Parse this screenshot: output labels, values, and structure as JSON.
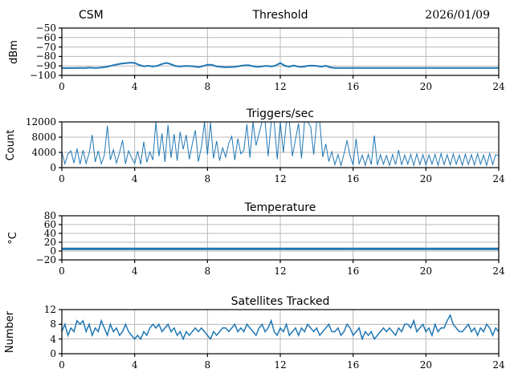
{
  "header": {
    "left_label": "CSM",
    "date": "2026/01/09"
  },
  "colors": {
    "line": "#1f77b4",
    "grid": "#b8b8b8",
    "spine": "#000000",
    "background": "#ffffff"
  },
  "chart_data": [
    {
      "type": "line",
      "title": "Threshold",
      "ylabel": "dBm",
      "xlim": [
        0,
        24
      ],
      "ylim": [
        -100,
        -50
      ],
      "yticks": [
        -100,
        -90,
        -80,
        -70,
        -60,
        -50
      ],
      "xticks": [
        0,
        4,
        8,
        12,
        16,
        20,
        24
      ],
      "grid": true,
      "line_width": 2,
      "x_start": 0,
      "x_end": 24,
      "values": [
        -92.2,
        -92.4,
        -92.1,
        -92.3,
        -92.0,
        -92.3,
        -91.8,
        -92.2,
        -92.0,
        -91.5,
        -90.8,
        -89.6,
        -88.6,
        -87.6,
        -87.0,
        -86.5,
        -86.9,
        -89.0,
        -90.3,
        -89.8,
        -90.6,
        -89.9,
        -88.0,
        -86.8,
        -88.2,
        -90.2,
        -90.6,
        -90.0,
        -90.2,
        -90.5,
        -91.3,
        -90.2,
        -88.7,
        -88.9,
        -90.5,
        -91.0,
        -91.4,
        -91.2,
        -91.0,
        -90.2,
        -89.4,
        -89.2,
        -90.3,
        -91.0,
        -90.4,
        -89.9,
        -90.6,
        -89.6,
        -86.9,
        -89.8,
        -90.8,
        -89.6,
        -90.9,
        -91.0,
        -89.9,
        -89.7,
        -90.1,
        -90.8,
        -89.8,
        -91.5,
        -92.2,
        -92.2,
        -92.2,
        -92.2,
        -92.2,
        -92.2,
        -92.2,
        -92.2,
        -92.2,
        -92.2,
        -92.2,
        -92.2,
        -92.2,
        -92.2,
        -92.2,
        -92.2,
        -92.2,
        -92.2,
        -92.2,
        -92.2,
        -92.2,
        -92.2,
        -92.2,
        -92.2,
        -92.2,
        -92.2,
        -92.2,
        -92.2,
        -92.2,
        -92.2,
        -92.2,
        -92.2,
        -92.2,
        -92.2,
        -92.2,
        -92.2,
        -92.2
      ]
    },
    {
      "type": "line",
      "title": "Triggers/sec",
      "ylabel": "Count",
      "xlim": [
        0,
        24
      ],
      "ylim": [
        0,
        12000
      ],
      "yticks": [
        0,
        4000,
        8000,
        12000
      ],
      "xticks": [
        0,
        4,
        8,
        12,
        16,
        20,
        24
      ],
      "grid": true,
      "line_width": 1,
      "x_start": 0,
      "x_end": 24,
      "values": [
        4200,
        1000,
        3600,
        4400,
        1200,
        5000,
        900,
        4600,
        1100,
        3800,
        8600,
        1500,
        4400,
        1000,
        3200,
        11000,
        2000,
        4700,
        1200,
        3900,
        7200,
        1000,
        4400,
        2600,
        1100,
        4300,
        900,
        6800,
        1400,
        4100,
        2000,
        12400,
        3000,
        9000,
        1500,
        11200,
        2600,
        8800,
        1800,
        9400,
        4800,
        8600,
        2200,
        6200,
        9800,
        1600,
        5400,
        12000,
        3400,
        11800,
        2400,
        7000,
        1800,
        5200,
        2800,
        6400,
        8200,
        2000,
        7600,
        3600,
        4600,
        11400,
        2600,
        12400,
        5800,
        9000,
        12400,
        12400,
        3000,
        12400,
        12400,
        2200,
        12400,
        4000,
        12400,
        12400,
        3000,
        7400,
        11600,
        2400,
        12400,
        12400,
        10800,
        3400,
        12400,
        12400,
        2800,
        6200,
        1600,
        4200,
        800,
        3400,
        600,
        3600,
        7200,
        3100,
        700,
        7600,
        900,
        3300,
        600,
        3500,
        800,
        8400,
        700,
        3400,
        900,
        3200,
        600,
        3400,
        800,
        4600,
        700,
        3300,
        900,
        3500,
        600,
        3600,
        800,
        3400,
        700,
        3300,
        900,
        3500,
        600,
        3700,
        800,
        3400,
        700,
        3600,
        900,
        3300,
        600,
        3500,
        800,
        3400,
        700,
        3600,
        900,
        3300,
        600,
        3700,
        800,
        3400,
        3200
      ]
    },
    {
      "type": "line",
      "title": "Temperature",
      "ylabel": "°C",
      "xlim": [
        0,
        24
      ],
      "ylim": [
        -20,
        80
      ],
      "yticks": [
        -20,
        0,
        20,
        40,
        60,
        80
      ],
      "xticks": [
        0,
        4,
        8,
        12,
        16,
        20,
        24
      ],
      "grid": true,
      "line_width": 3,
      "x_start": 0,
      "x_end": 24,
      "values": [
        5,
        5
      ]
    },
    {
      "type": "line",
      "title": "Satellites Tracked",
      "ylabel": "Number",
      "xlim": [
        0,
        24
      ],
      "ylim": [
        0,
        12
      ],
      "yticks": [
        0,
        4,
        8,
        12
      ],
      "xticks": [
        0,
        4,
        8,
        12,
        16,
        20,
        24
      ],
      "grid": true,
      "line_width": 1.5,
      "x_start": 0,
      "x_end": 24,
      "values": [
        6,
        8,
        5,
        7,
        6,
        9,
        8,
        9,
        6,
        8,
        5,
        7,
        6,
        9,
        7,
        5,
        8,
        6,
        7,
        5,
        6,
        8,
        6,
        5,
        4,
        5,
        4,
        6,
        5,
        7,
        8,
        7,
        8,
        6,
        7,
        8,
        6,
        7,
        5,
        6,
        4,
        6,
        5,
        6,
        7,
        6,
        7,
        6,
        5,
        4,
        6,
        5,
        6,
        7,
        7,
        6,
        7,
        8,
        6,
        7,
        6,
        8,
        7,
        6,
        5,
        7,
        8,
        6,
        7,
        9,
        6,
        5,
        7,
        6,
        8,
        5,
        6,
        7,
        5,
        7,
        6,
        8,
        7,
        6,
        7,
        5,
        6,
        7,
        8,
        6,
        6,
        7,
        5,
        6,
        8,
        7,
        5,
        6,
        7,
        4,
        6,
        5,
        6,
        4,
        5,
        6,
        7,
        6,
        7,
        6,
        5,
        7,
        6,
        8,
        8,
        7,
        9,
        6,
        7,
        8,
        6,
        7,
        5,
        8,
        6,
        7,
        7,
        9,
        10.5,
        8,
        7,
        6,
        6,
        7,
        8,
        6,
        7,
        5,
        7,
        6,
        8,
        7,
        5,
        7,
        6
      ]
    }
  ]
}
